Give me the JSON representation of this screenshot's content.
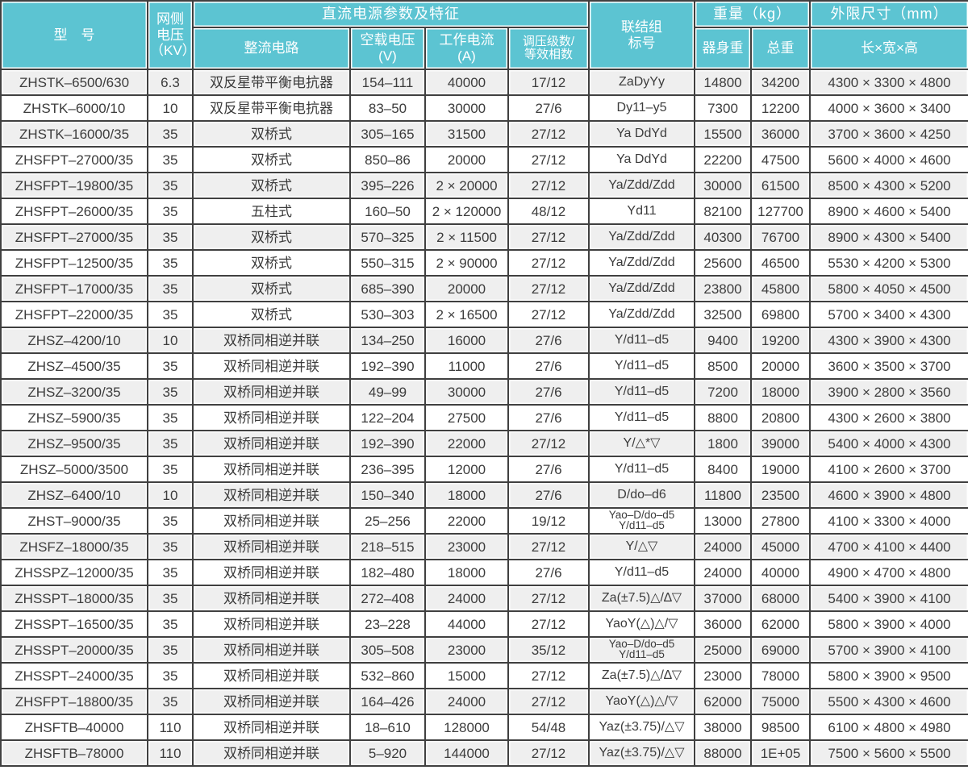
{
  "header": {
    "model": "型　号",
    "grid_voltage": "网侧\n电压\n（KV）",
    "dc_params": "直流电源参数及特征",
    "rectifier_circuit": "整流电路",
    "no_load_voltage": "空载电压\n(V)",
    "working_current": "工作电流\n(A)",
    "regulation": "调压级数/\n等效相数",
    "connection": "联结组\n标号",
    "weight": "重量（kg）",
    "body_weight": "器身重",
    "total_weight": "总重",
    "dimensions": "外限尺寸（mm）",
    "lwh": "长×宽×高"
  },
  "colors": {
    "header_bg": "#5CC4D2",
    "header_text": "#FFFFFF",
    "grid_line": "#404040",
    "row_alt_bg": "#EFEFEF",
    "row_bg": "#FFFFFF",
    "body_text": "#3C3C3C"
  },
  "columns": [
    "model",
    "grid-voltage",
    "rectifier-circuit",
    "no-load-voltage",
    "working-current",
    "regulation",
    "connection",
    "body-weight",
    "total-weight",
    "dimensions"
  ],
  "rows": [
    [
      "ZHSTK–6500/630",
      "6.3",
      "双反星带平衡电抗器",
      "154–111",
      "40000",
      "17/12",
      "ZaDyYy",
      "14800",
      "34200",
      "4300 × 3300 × 4800"
    ],
    [
      "ZHSTK–6000/10",
      "10",
      "双反星带平衡电抗器",
      "83–50",
      "30000",
      "27/6",
      "Dy11–y5",
      "7300",
      "12200",
      "4000 × 3600 × 3400"
    ],
    [
      "ZHSTK–16000/35",
      "35",
      "双桥式",
      "305–165",
      "31500",
      "27/12",
      "Ya DdYd",
      "15500",
      "36000",
      "3700 × 3600 × 4250"
    ],
    [
      "ZHSFPT–27000/35",
      "35",
      "双桥式",
      "850–86",
      "20000",
      "27/12",
      "Ya DdYd",
      "22200",
      "47500",
      "5600 × 4000 × 4600"
    ],
    [
      "ZHSFPT–19800/35",
      "35",
      "双桥式",
      "395–226",
      "2 × 20000",
      "27/12",
      "Ya/Zdd/Zdd",
      "30000",
      "61500",
      "8500 × 4300 × 5200"
    ],
    [
      "ZHSFPT–26000/35",
      "35",
      "五柱式",
      "160–50",
      "2 × 120000",
      "48/12",
      "Yd11",
      "82100",
      "127700",
      "8900 × 4600 × 5400"
    ],
    [
      "ZHSFPT–27000/35",
      "35",
      "双桥式",
      "570–325",
      "2 × 11500",
      "27/12",
      "Ya/Zdd/Zdd",
      "40300",
      "76700",
      "8900 × 4300 × 5400"
    ],
    [
      "ZHSFPT–12500/35",
      "35",
      "双桥式",
      "550–315",
      "2 × 90000",
      "27/12",
      "Ya/Zdd/Zdd",
      "25600",
      "46500",
      "5530 × 4200 × 5300"
    ],
    [
      "ZHSFPT–17000/35",
      "35",
      "双桥式",
      "685–390",
      "20000",
      "27/12",
      "Ya/Zdd/Zdd",
      "23800",
      "45800",
      "5800 × 4050 × 4500"
    ],
    [
      "ZHSFPT–22000/35",
      "35",
      "双桥式",
      "530–303",
      "2 × 16500",
      "27/12",
      "Ya/Zdd/Zdd",
      "32500",
      "69800",
      "5700 × 3400 × 4300"
    ],
    [
      "ZHSZ–4200/10",
      "10",
      "双桥同相逆并联",
      "134–250",
      "16000",
      "27/6",
      "Y/d11–d5",
      "9400",
      "19200",
      "4300 × 3900 × 4300"
    ],
    [
      "ZHSZ–4500/35",
      "35",
      "双桥同相逆并联",
      "192–390",
      "11000",
      "27/6",
      "Y/d11–d5",
      "8500",
      "20000",
      "3600 × 3500 × 3700"
    ],
    [
      "ZHSZ–3200/35",
      "35",
      "双桥同相逆并联",
      "49–99",
      "30000",
      "27/6",
      "Y/d11–d5",
      "7200",
      "18000",
      "3900 × 2800 × 3560"
    ],
    [
      "ZHSZ–5900/35",
      "35",
      "双桥同相逆并联",
      "122–204",
      "27500",
      "27/6",
      "Y/d11–d5",
      "8800",
      "20800",
      "4300 × 2600 × 3800"
    ],
    [
      "ZHSZ–9500/35",
      "35",
      "双桥同相逆并联",
      "192–390",
      "22000",
      "27/12",
      "Y/△*▽",
      "1800",
      "39000",
      "5400 × 4000 × 4300"
    ],
    [
      "ZHSZ–5000/3500",
      "35",
      "双桥同相逆并联",
      "236–395",
      "12000",
      "27/6",
      "Y/d11–d5",
      "8400",
      "19000",
      "4100 × 2600 × 3700"
    ],
    [
      "ZHSZ–6400/10",
      "10",
      "双桥同相逆并联",
      "150–340",
      "18000",
      "27/6",
      "D/do–d6",
      "11800",
      "23500",
      "4600 × 3900 × 4800"
    ],
    [
      "ZHST–9000/35",
      "35",
      "双桥同相逆并联",
      "25–256",
      "22000",
      "19/12",
      "Yao–D/do–d5\nY/d11–d5",
      "13000",
      "27800",
      "4100 × 3300 × 4000"
    ],
    [
      "ZHSFZ–18000/35",
      "35",
      "双桥同相逆并联",
      "218–515",
      "23000",
      "27/12",
      "Y/△▽",
      "24000",
      "45000",
      "4700 × 4100 × 4400"
    ],
    [
      "ZHSSPZ–12000/35",
      "35",
      "双桥同相逆并联",
      "182–480",
      "18000",
      "27/6",
      "Y/d11–d5",
      "24000",
      "40000",
      "4900 × 4700 × 4800"
    ],
    [
      "ZHSSPT–18000/35",
      "35",
      "双桥同相逆并联",
      "272–408",
      "24000",
      "27/12",
      "Za(±7.5)△/∆▽",
      "37000",
      "68000",
      "5400 × 3900 × 4100"
    ],
    [
      "ZHSSPT–16500/35",
      "35",
      "双桥同相逆并联",
      "23–228",
      "44000",
      "27/12",
      "YaoY(△)△/▽",
      "36000",
      "62000",
      "5800 × 3900 × 4000"
    ],
    [
      "ZHSSPT–20000/35",
      "35",
      "双桥同相逆并联",
      "305–508",
      "23000",
      "35/12",
      "Yao–D/do–d5\nY/d11–d5",
      "25000",
      "69000",
      "5700 × 3900 × 4100"
    ],
    [
      "ZHSSPT–24000/35",
      "35",
      "双桥同相逆并联",
      "532–860",
      "15000",
      "27/12",
      "Za(±7.5)△/∆▽",
      "23000",
      "78000",
      "5800 × 3900 × 9500"
    ],
    [
      "ZHSFPT–18800/35",
      "35",
      "双桥同相逆并联",
      "164–426",
      "24000",
      "27/12",
      "YaoY(△)△/▽",
      "62000",
      "75000",
      "5500 × 4300 × 4600"
    ],
    [
      "ZHSFTB–40000",
      "110",
      "双桥同相逆并联",
      "18–610",
      "128000",
      "54/48",
      "Yaz(±3.75)/△▽",
      "38000",
      "98500",
      "6100 × 4800 × 4980"
    ],
    [
      "ZHSFTB–78000",
      "110",
      "双桥同相逆并联",
      "5–920",
      "144000",
      "27/12",
      "Yaz(±3.75)/△▽",
      "88000",
      "1E+05",
      "7500 × 5600 × 5500"
    ]
  ]
}
